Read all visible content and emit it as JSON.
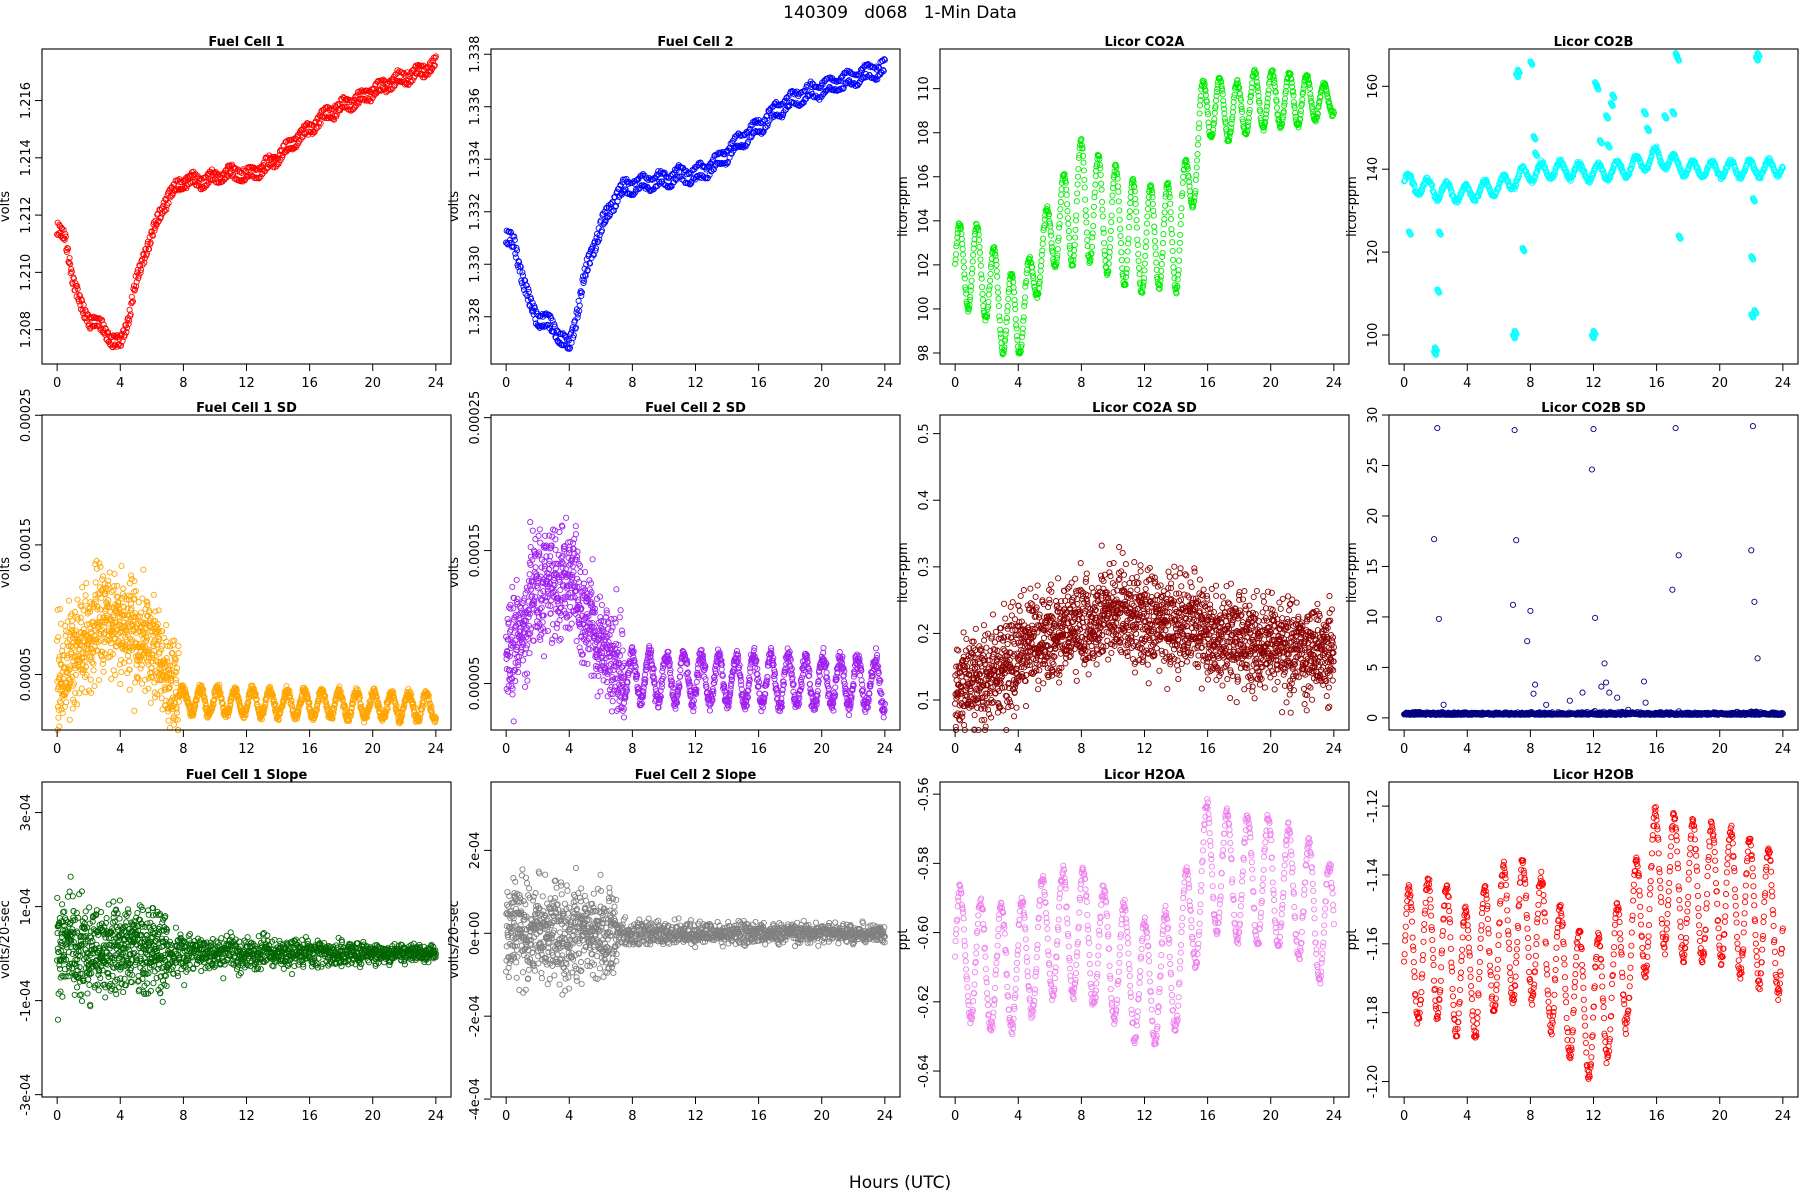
{
  "figure": {
    "title": "140309   d068   1-Min Data",
    "xlabel": "Hours (UTC)"
  },
  "chart_data": [
    {
      "id": "fc1",
      "type": "scatter",
      "title": "Fuel Cell 1",
      "ylabel": "volts",
      "color": "#ff0000",
      "xlim": [
        -0.96,
        24.96
      ],
      "ylim": [
        1.2068,
        1.2178
      ],
      "xticks": [
        0,
        4,
        8,
        12,
        16,
        20,
        24
      ],
      "yticks": [
        1.208,
        1.21,
        1.212,
        1.214,
        1.216
      ],
      "ytick_labels": [
        "1.208",
        "1.210",
        "1.212",
        "1.214",
        "1.216"
      ],
      "series": [
        {
          "x": [
            0,
            0.5,
            1,
            1.5,
            2,
            2.5,
            3,
            3.5,
            4,
            4.5,
            5,
            5.5,
            6,
            6.5,
            7,
            7.5,
            8,
            9,
            10,
            11,
            12,
            13,
            14,
            15,
            16,
            17,
            18,
            19,
            20,
            21,
            22,
            23,
            24
          ],
          "y": [
            1.2115,
            1.2112,
            1.2098,
            1.2088,
            1.2084,
            1.2082,
            1.208,
            1.2076,
            1.2075,
            1.2084,
            1.2096,
            1.2106,
            1.2113,
            1.212,
            1.2126,
            1.2129,
            1.2132,
            1.2132,
            1.2133,
            1.2135,
            1.2134,
            1.2136,
            1.214,
            1.2146,
            1.215,
            1.2155,
            1.2158,
            1.216,
            1.2163,
            1.2166,
            1.2168,
            1.217,
            1.2173
          ],
          "spread": 0.00018,
          "twin": 0.0003
        }
      ]
    },
    {
      "id": "fc2",
      "type": "scatter",
      "title": "Fuel Cell 2",
      "ylabel": "volts",
      "color": "#0000ff",
      "xlim": [
        -0.96,
        24.96
      ],
      "ylim": [
        1.3262,
        1.3382
      ],
      "xticks": [
        0,
        4,
        8,
        12,
        16,
        20,
        24
      ],
      "yticks": [
        1.328,
        1.33,
        1.332,
        1.334,
        1.336,
        1.338
      ],
      "ytick_labels": [
        "1.328",
        "1.330",
        "1.332",
        "1.334",
        "1.336",
        "1.338"
      ],
      "series": [
        {
          "x": [
            0,
            0.5,
            1,
            1.5,
            2,
            2.5,
            3,
            3.5,
            4,
            4.5,
            5,
            5.5,
            6,
            6.5,
            7,
            7.5,
            8,
            9,
            10,
            11,
            12,
            13,
            14,
            15,
            16,
            17,
            18,
            19,
            20,
            21,
            22,
            23,
            24
          ],
          "y": [
            1.331,
            1.3308,
            1.3296,
            1.3285,
            1.328,
            1.3278,
            1.3276,
            1.3272,
            1.3268,
            1.3282,
            1.3296,
            1.3306,
            1.3314,
            1.332,
            1.3326,
            1.3329,
            1.333,
            1.3331,
            1.3332,
            1.3334,
            1.3334,
            1.3337,
            1.3342,
            1.3348,
            1.3352,
            1.3358,
            1.3362,
            1.3365,
            1.3367,
            1.3369,
            1.3371,
            1.3373,
            1.3375
          ],
          "spread": 0.0002,
          "twin": 0.0004
        }
      ]
    },
    {
      "id": "co2a",
      "type": "scatter",
      "title": "Licor CO2A",
      "ylabel": "licor-ppm",
      "color": "#00ee00",
      "xlim": [
        -0.96,
        24.96
      ],
      "ylim": [
        97.5,
        111.8
      ],
      "xticks": [
        0,
        4,
        8,
        12,
        16,
        20,
        24
      ],
      "yticks": [
        98,
        100,
        102,
        104,
        106,
        108,
        110
      ],
      "ytick_labels": [
        "98",
        "100",
        "102",
        "104",
        "106",
        "108",
        "110"
      ],
      "series": [
        {
          "x": [
            0,
            1,
            2,
            3,
            4,
            5,
            6,
            7,
            8,
            9,
            10,
            11,
            12,
            13,
            14,
            15,
            15.5,
            16,
            17,
            18,
            19,
            20,
            21,
            22,
            23,
            24
          ],
          "y": [
            102,
            102,
            101.5,
            100,
            99.5,
            101.5,
            103.5,
            104,
            105,
            104.5,
            104,
            103.5,
            103,
            103.5,
            103,
            106,
            108,
            109.5,
            109,
            109,
            109.5,
            109.5,
            109.5,
            109.5,
            109.5,
            109.5
          ],
          "amp": [
            1.8,
            2,
            2,
            2,
            1.8,
            1.3,
            1.5,
            2.3,
            2.7,
            2.5,
            2.6,
            2.6,
            2.3,
            2.5,
            2.3,
            1.7,
            1.7,
            1.7,
            1.3,
            1.3,
            1.3,
            1.3,
            1.2,
            1.2,
            0.8,
            0.6
          ],
          "period": 1.1,
          "spread": 0.12
        }
      ]
    },
    {
      "id": "co2b",
      "type": "scatter",
      "title": "Licor CO2B",
      "ylabel": "licor-ppm",
      "color": "#00ffff",
      "xlim": [
        -0.96,
        24.96
      ],
      "ylim": [
        93,
        169
      ],
      "xticks": [
        0,
        4,
        8,
        12,
        16,
        20,
        24
      ],
      "yticks": [
        100,
        120,
        140,
        160
      ],
      "ytick_labels": [
        "100",
        "120",
        "140",
        "160"
      ],
      "series": [
        {
          "x": [
            0,
            2,
            4,
            6,
            8,
            10,
            12,
            14,
            16,
            18,
            20,
            22,
            24
          ],
          "y": [
            137,
            135,
            134,
            136,
            139,
            140,
            139,
            140,
            143,
            140,
            140,
            140,
            140.5
          ],
          "amp": 2,
          "period": 1.2,
          "spread": 0.6
        },
        {
          "name": "outliers",
          "x": [
            0.3,
            1.9,
            1.95,
            2.1,
            2.2,
            6.9,
            7.0,
            7.1,
            7.2,
            7.5,
            8.0,
            8.2,
            8.3,
            11.9,
            12.0,
            12.1,
            12.2,
            12.4,
            12.8,
            12.9,
            13.1,
            13.2,
            15.2,
            15.4,
            16.5,
            17.2,
            17.3,
            17.4,
            17.0,
            22.0,
            22.2,
            22.3,
            22.4,
            22.0,
            22.1
          ],
          "y": [
            125,
            96,
            97,
            111,
            125,
            100,
            101,
            163,
            164,
            121,
            166,
            148,
            144,
            100,
            101,
            161,
            160,
            147,
            153,
            146,
            156,
            158,
            154,
            150,
            153,
            168,
            167,
            124,
            154,
            105,
            106,
            167,
            168,
            119,
            133
          ]
        }
      ]
    },
    {
      "id": "fc1sd",
      "type": "scatter",
      "title": "Fuel Cell 1 SD",
      "ylabel": "volts",
      "color": "#ffa500",
      "xlim": [
        -0.96,
        24.96
      ],
      "ylim": [
        7.2e-06,
        0.0002502
      ],
      "xticks": [
        0,
        4,
        8,
        12,
        16,
        20,
        24
      ],
      "yticks": [
        5e-05,
        0.00015,
        0.00025
      ],
      "ytick_labels": [
        "0.00005",
        "0.00015",
        "0.00025"
      ],
      "series": [
        {
          "segments": [
            {
              "x0": 0,
              "x1": 1,
              "base0": 5e-05,
              "base1": 6e-05
            },
            {
              "x0": 1,
              "x1": 3,
              "base0": 7e-05,
              "base1": 9e-05
            },
            {
              "x0": 3,
              "x1": 6.5,
              "base0": 9e-05,
              "base1": 7e-05
            },
            {
              "x0": 6.5,
              "x1": 7.7,
              "base0": 6e-05,
              "base1": 3e-05
            }
          ],
          "noisy_spread": 4e-05,
          "calm": {
            "x0": 7.7,
            "x1": 24,
            "base0": 3e-05,
            "base1": 2.5e-05,
            "amp": 1e-05,
            "period": 1.1
          }
        }
      ]
    },
    {
      "id": "fc2sd",
      "type": "scatter",
      "title": "Fuel Cell 2 SD",
      "ylabel": "volts",
      "color": "#a020f0",
      "xlim": [
        -0.96,
        24.96
      ],
      "ylim": [
        1.5e-05,
        0.000252
      ],
      "xticks": [
        0,
        4,
        8,
        12,
        16,
        20,
        24
      ],
      "yticks": [
        5e-05,
        0.00015,
        0.00025
      ],
      "ytick_labels": [
        "0.00005",
        "0.00015",
        "0.00025"
      ],
      "series": [
        {
          "segments": [
            {
              "x0": 0,
              "x1": 1.5,
              "base0": 7e-05,
              "base1": 0.0001
            },
            {
              "x0": 1.5,
              "x1": 4.5,
              "base0": 0.00012,
              "base1": 0.00013
            },
            {
              "x0": 4.5,
              "x1": 7.5,
              "base0": 0.00011,
              "base1": 5e-05
            }
          ],
          "noisy_spread": 4e-05,
          "calm": {
            "x0": 7.5,
            "x1": 24,
            "base0": 5.5e-05,
            "base1": 5e-05,
            "amp": 1.8e-05,
            "period": 1.1
          }
        }
      ]
    },
    {
      "id": "co2asd",
      "type": "scatter",
      "title": "Licor CO2A SD",
      "ylabel": "licor-ppm",
      "color": "#8b0000",
      "xlim": [
        -0.96,
        24.96
      ],
      "ylim": [
        0.055,
        0.528
      ],
      "xticks": [
        0,
        4,
        8,
        12,
        16,
        20,
        24
      ],
      "yticks": [
        0.1,
        0.2,
        0.3,
        0.4,
        0.5
      ],
      "ytick_labels": [
        "0.1",
        "0.2",
        "0.3",
        "0.4",
        "0.5"
      ],
      "series": [
        {
          "segments": [
            {
              "x0": 0,
              "x1": 4,
              "base0": 0.11,
              "base1": 0.16
            },
            {
              "x0": 4,
              "x1": 10,
              "base0": 0.18,
              "base1": 0.23
            },
            {
              "x0": 10,
              "x1": 16,
              "base0": 0.23,
              "base1": 0.21
            },
            {
              "x0": 16,
              "x1": 24,
              "base0": 0.2,
              "base1": 0.17
            }
          ],
          "noisy_spread": 0.07
        }
      ]
    },
    {
      "id": "co2bsd",
      "type": "scatter",
      "title": "Licor CO2B SD",
      "ylabel": "licor-ppm",
      "color": "#000080",
      "xlim": [
        -0.96,
        24.96
      ],
      "ylim": [
        -1.2,
        30
      ],
      "xticks": [
        0,
        4,
        8,
        12,
        16,
        20,
        24
      ],
      "yticks": [
        0,
        5,
        10,
        15,
        20,
        25,
        30
      ],
      "ytick_labels": [
        "0",
        "5",
        "10",
        "15",
        "20",
        "25",
        "30"
      ],
      "series": [
        {
          "base": 0.3,
          "spread": 0.25,
          "x": [
            0.3,
            1.9,
            2.1,
            2.2,
            2.5,
            6.9,
            7.0,
            7.1,
            7.8,
            8.0,
            8.2,
            11.9,
            12.0,
            12.1,
            12.5,
            12.7,
            12.8,
            13.0,
            15.2,
            15.3,
            17.0,
            17.2,
            17.4,
            22.0,
            22.1,
            22.2,
            22.4,
            8.3,
            9.0,
            10.5,
            11.3,
            13.5,
            14.2
          ],
          "y": [
            0.5,
            17.7,
            28.7,
            9.8,
            1.3,
            11.2,
            28.5,
            17.6,
            7.6,
            10.6,
            2.4,
            24.6,
            28.6,
            9.9,
            3.1,
            5.4,
            3.5,
            2.5,
            3.6,
            1.5,
            12.7,
            28.7,
            16.1,
            16.6,
            28.9,
            11.5,
            5.9,
            3.3,
            1.3,
            1.7,
            2.5,
            2.0,
            0.8
          ]
        }
      ]
    },
    {
      "id": "fc1slope",
      "type": "scatter",
      "title": "Fuel Cell 1 Slope",
      "ylabel": "volts/20-sec",
      "color": "#006400",
      "xlim": [
        -0.96,
        24.96
      ],
      "ylim": [
        -0.000305,
        0.000365
      ],
      "xticks": [
        0,
        4,
        8,
        12,
        16,
        20,
        24
      ],
      "yticks": [
        -0.0003,
        -0.0001,
        0.0001,
        0.0003
      ],
      "ytick_labels": [
        "-3e-04",
        "-1e-04",
        "1e-04",
        "3e-04"
      ],
      "series": [
        {
          "segments": [
            {
              "x0": 0,
              "x1": 7,
              "base0": 1e-05,
              "base1": 1e-05
            }
          ],
          "noisy_spread": 0.0001,
          "calm": {
            "x0": 7,
            "x1": 24,
            "base0": 0,
            "base1": 0,
            "spread0": 4.5e-05,
            "spread1": 1.5e-05
          }
        }
      ]
    },
    {
      "id": "fc2slope",
      "type": "scatter",
      "title": "Fuel Cell 2 Slope",
      "ylabel": "volts/20-sec",
      "color": "#808080",
      "xlim": [
        -0.96,
        24.96
      ],
      "ylim": [
        -0.000395,
        0.000365
      ],
      "xticks": [
        0,
        4,
        8,
        12,
        16,
        20,
        24
      ],
      "yticks": [
        -0.0004,
        -0.0002,
        0,
        0.0002
      ],
      "ytick_labels": [
        "-4e-04",
        "-2e-04",
        "0e+00",
        "2e-04"
      ],
      "series": [
        {
          "segments": [
            {
              "x0": 0,
              "x1": 7,
              "base0": 0,
              "base1": 0
            }
          ],
          "noisy_spread": 0.00012,
          "calm": {
            "x0": 7,
            "x1": 24,
            "base0": 0,
            "base1": 0,
            "spread0": 3e-05,
            "spread1": 2e-05
          }
        }
      ]
    },
    {
      "id": "h2oa",
      "type": "scatter",
      "title": "Licor H2OA",
      "ylabel": "ppt",
      "color": "#ee82ee",
      "xlim": [
        -0.96,
        24.96
      ],
      "ylim": [
        -0.6475,
        -0.5565
      ],
      "xticks": [
        0,
        4,
        8,
        12,
        16,
        20,
        24
      ],
      "yticks": [
        -0.64,
        -0.62,
        -0.6,
        -0.58,
        -0.56
      ],
      "ytick_labels": [
        "-0.64",
        "-0.62",
        "-0.60",
        "-0.58",
        "-0.56"
      ],
      "series": [
        {
          "x": [
            0,
            2,
            4,
            6,
            8,
            10,
            12,
            14,
            16,
            18,
            20,
            22,
            24
          ],
          "y": [
            -0.605,
            -0.61,
            -0.61,
            -0.6,
            -0.6,
            -0.607,
            -0.615,
            -0.61,
            -0.58,
            -0.585,
            -0.585,
            -0.59,
            -0.6
          ],
          "amp": 0.018,
          "period": 1.3,
          "spread": 0.002
        }
      ]
    },
    {
      "id": "h2ob",
      "type": "scatter",
      "title": "Licor H2OB",
      "ylabel": "ppt",
      "color": "#ff0000",
      "xlim": [
        -0.96,
        24.96
      ],
      "ylim": [
        -1.2045,
        -1.113
      ],
      "xticks": [
        0,
        4,
        8,
        12,
        16,
        20,
        24
      ],
      "yticks": [
        -1.2,
        -1.18,
        -1.16,
        -1.14,
        -1.12
      ],
      "ytick_labels": [
        "-1.20",
        "-1.18",
        "-1.16",
        "-1.14",
        "-1.12"
      ],
      "series": [
        {
          "x": [
            0,
            2,
            4,
            6,
            8,
            10,
            12,
            14,
            16,
            18,
            20,
            22,
            24
          ],
          "y": [
            -1.165,
            -1.16,
            -1.17,
            -1.158,
            -1.155,
            -1.17,
            -1.18,
            -1.165,
            -1.14,
            -1.145,
            -1.145,
            -1.15,
            -1.155
          ],
          "amp": 0.02,
          "period": 1.2,
          "spread": 0.002
        }
      ]
    }
  ]
}
